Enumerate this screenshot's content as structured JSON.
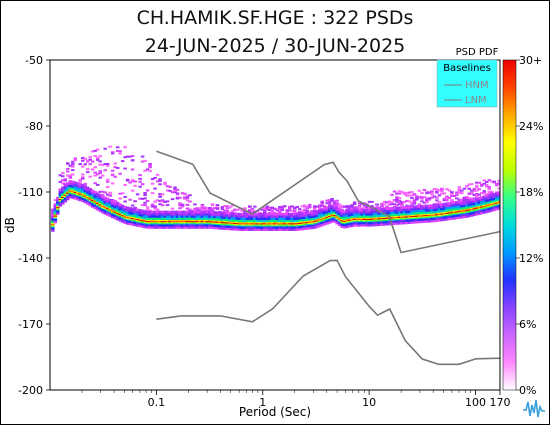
{
  "header": {
    "title": "CH.HAMIK.SF.HGE : 322 PSDs",
    "subtitle": "24-JUN-2025 / 30-JUN-2025"
  },
  "colorbar": {
    "title": "PSD PDF",
    "tick_labels": [
      "30+",
      "24%",
      "18%",
      "12%",
      "6%",
      "0%"
    ],
    "colors": [
      "#ffffff",
      "#ff88ff",
      "#cc66ff",
      "#8844ff",
      "#2233ff",
      "#0099ff",
      "#00dddd",
      "#33ff88",
      "#bbff00",
      "#ffff00",
      "#ffaa00",
      "#ff4400",
      "#ee0000"
    ]
  },
  "legend": {
    "title": "Baselines",
    "items": [
      "HNM",
      "LNM"
    ],
    "background": "#33ffff"
  },
  "chart_data": {
    "type": "heatmap",
    "title": "CH.HAMIK.SF.HGE : 322 PSDs",
    "subtitle": "24-JUN-2025 / 30-JUN-2025",
    "xlabel": "Period (Sec)",
    "ylabel": "dB",
    "x_scale": "log",
    "xlim": [
      0.01,
      170
    ],
    "ylim": [
      -200,
      -50
    ],
    "x_ticks": [
      0.1,
      1,
      10,
      100,
      170
    ],
    "x_tick_labels": [
      "0.1",
      "1",
      "10",
      "100",
      "170"
    ],
    "y_ticks": [
      -50,
      -80,
      -110,
      -140,
      -170,
      -200
    ],
    "y_tick_labels": [
      "-50",
      "-80",
      "-110",
      "-140",
      "-170",
      "-200"
    ],
    "series": [
      {
        "name": "HNM",
        "color": "#777777",
        "x": [
          0.1,
          0.22,
          0.32,
          0.8,
          3.8,
          4.6,
          5.2,
          6.2,
          7.9,
          15.4,
          20,
          170
        ],
        "y": [
          -91.5,
          -97.4,
          -110.5,
          -120,
          -97.5,
          -96.5,
          -101,
          -105,
          -114,
          -121,
          -137.5,
          -128
        ]
      },
      {
        "name": "LNM",
        "color": "#777777",
        "x": [
          0.1,
          0.17,
          0.4,
          0.8,
          1.24,
          2.4,
          4.3,
          5,
          6,
          10,
          12,
          15.6,
          21.9,
          31.6,
          45,
          70,
          101,
          154,
          170
        ],
        "y": [
          -167.8,
          -166.3,
          -166.3,
          -169,
          -163.1,
          -148.2,
          -141.2,
          -141.1,
          -148.5,
          -161.9,
          -166,
          -163.2,
          -177.6,
          -185.9,
          -188.3,
          -188.3,
          -185.8,
          -185.6,
          -185.6
        ]
      },
      {
        "name": "PDF mode",
        "x": [
          0.01,
          0.012,
          0.015,
          0.02,
          0.03,
          0.05,
          0.08,
          0.15,
          0.3,
          0.6,
          1,
          2,
          3,
          4.5,
          5.5,
          7,
          10,
          20,
          40,
          80,
          120,
          170
        ],
        "y": [
          -126,
          -113,
          -109,
          -111,
          -116,
          -121,
          -123,
          -123,
          -123,
          -124,
          -124,
          -124,
          -123,
          -120,
          -123,
          -122,
          -122,
          -121,
          -120,
          -118,
          -116,
          -114
        ]
      }
    ]
  }
}
